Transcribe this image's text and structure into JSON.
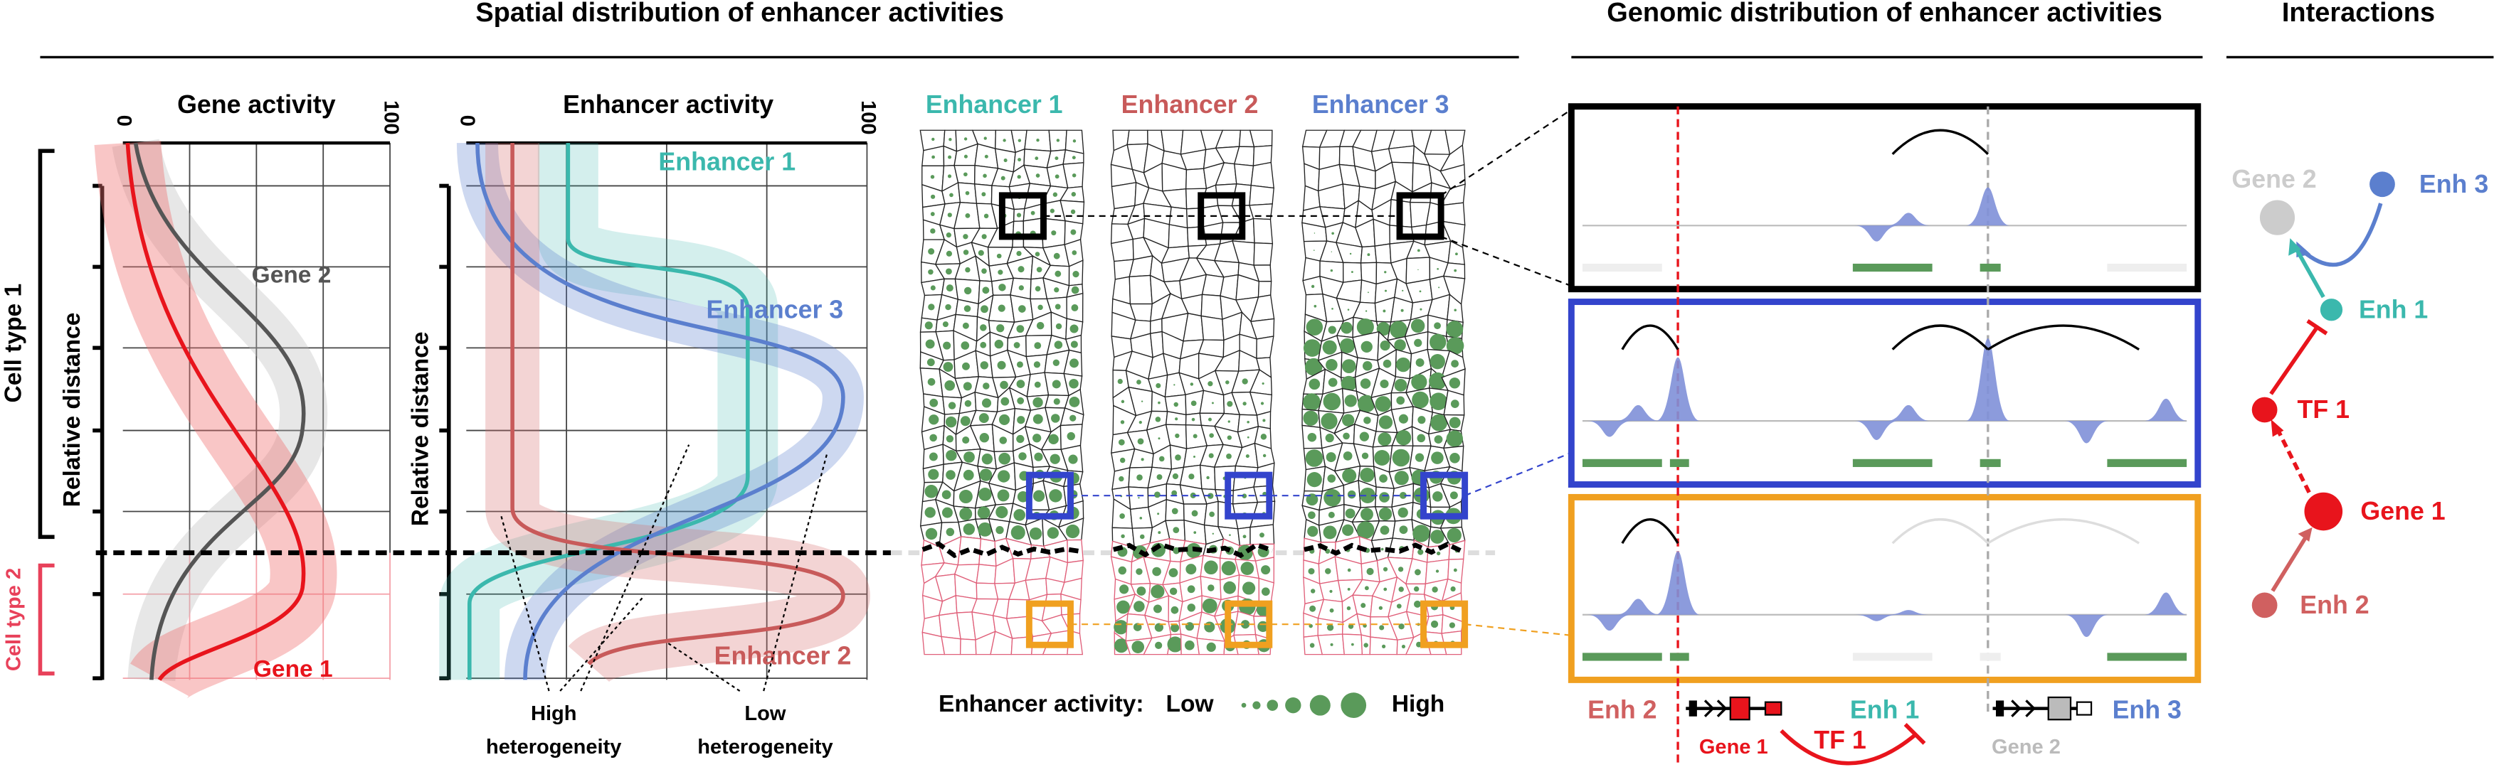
{
  "headers": {
    "spatial": "Spatial distribution of enhancer activities",
    "genomic": "Genomic distribution of enhancer activities",
    "interactions": "Interactions"
  },
  "gene_panel": {
    "title": "Gene activity",
    "axis_min": 0,
    "axis_max": 100,
    "y_label": "Relative distance",
    "cell_type_1": "Cell type 1",
    "cell_type_2": "Cell type 2",
    "gene_2": "Gene 2",
    "gene_1": "Gene 1"
  },
  "enhancer_panel": {
    "title": "Enhancer activity",
    "axis_min": 0,
    "axis_max": 100,
    "y_label": "Relative distance",
    "enhancer_1": "Enhancer 1",
    "enhancer_3": "Enhancer 3",
    "enhancer_2": "Enhancer 2",
    "high_heterogeneity": [
      "High",
      "heterogeneity"
    ],
    "low_heterogeneity": [
      "Low",
      "heterogeneity"
    ]
  },
  "tissue_panel": {
    "columns": [
      "Enhancer 1",
      "Enhancer 2",
      "Enhancer 3"
    ],
    "legend": {
      "label": "Enhancer activity:",
      "low": "Low",
      "high": "High"
    }
  },
  "genomic_panel": {
    "enh_2": "Enh 2",
    "gene_1": "Gene 1",
    "enh_1": "Enh 1",
    "tf_1": "TF 1",
    "gene_2": "Gene 2",
    "enh_3": "Enh 3"
  },
  "interactions": {
    "gene_2": "Gene 2",
    "enh_3": "Enh 3",
    "enh_1": "Enh 1",
    "tf_1": "TF 1",
    "gene_1": "Gene 1",
    "enh_2": "Enh 2"
  }
}
